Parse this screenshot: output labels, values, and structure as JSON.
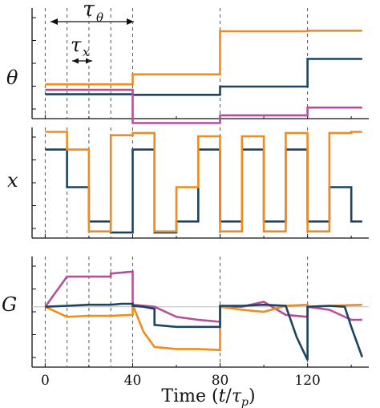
{
  "colors": {
    "orange": "#f08c1e",
    "navy": "#1c4460",
    "magenta": "#b3509c",
    "axis": "#111111",
    "dashed": "#555555",
    "zero_line": "#bbbbbb"
  },
  "annotations": {
    "tau_theta": "τ",
    "tau_theta_sub": "θ",
    "tau_x": "τ",
    "tau_x_sub": "x"
  },
  "chart_data": [
    {
      "type": "line",
      "panel": "theta",
      "ylabel": "θ",
      "xlabel": "",
      "xlim": [
        -6,
        148
      ],
      "ylim": [
        0,
        10
      ],
      "grid": false,
      "vlines": [
        0,
        10,
        20,
        30,
        40,
        80,
        120
      ],
      "series": [
        {
          "color": "orange",
          "step": true,
          "x": [
            0,
            40,
            40,
            80,
            80,
            120,
            120,
            145
          ],
          "y": [
            3.1,
            3.1,
            4.0,
            4.0,
            7.9,
            7.9,
            7.95,
            7.95
          ]
        },
        {
          "color": "navy",
          "step": true,
          "x": [
            0,
            40,
            40,
            80,
            80,
            120,
            120,
            145
          ],
          "y": [
            2.2,
            2.2,
            2.15,
            2.15,
            2.9,
            2.9,
            5.4,
            5.4
          ]
        },
        {
          "color": "magenta",
          "step": true,
          "x": [
            0,
            40,
            40,
            80,
            80,
            120,
            120,
            145
          ],
          "y": [
            2.6,
            2.6,
            -0.4,
            -0.4,
            0.3,
            0.3,
            1.0,
            1.0
          ]
        }
      ]
    },
    {
      "type": "line",
      "panel": "x",
      "ylabel": "x",
      "xlabel": "",
      "xlim": [
        -6,
        148
      ],
      "ylim": [
        0,
        10
      ],
      "grid": false,
      "vlines": [
        0,
        10,
        20,
        30,
        40,
        80,
        120
      ],
      "series": [
        {
          "color": "navy",
          "step": true,
          "x": [
            0,
            10,
            10,
            20,
            20,
            30,
            30,
            40,
            40,
            50,
            50,
            60,
            60,
            70,
            70,
            80,
            80,
            90,
            90,
            100,
            100,
            110,
            110,
            120,
            120,
            130,
            130,
            140,
            140,
            145
          ],
          "y": [
            8.0,
            8.0,
            4.6,
            4.6,
            1.5,
            1.5,
            0.5,
            0.5,
            8.0,
            8.0,
            0.5,
            0.5,
            1.5,
            1.5,
            8.0,
            8.0,
            1.5,
            1.5,
            8.0,
            8.0,
            1.5,
            1.5,
            8.0,
            8.0,
            1.5,
            1.5,
            4.6,
            4.6,
            1.5,
            1.5
          ]
        },
        {
          "color": "orange",
          "step": true,
          "x": [
            0,
            10,
            10,
            20,
            20,
            30,
            30,
            40,
            40,
            50,
            50,
            60,
            60,
            70,
            70,
            80,
            80,
            90,
            90,
            100,
            100,
            110,
            110,
            120,
            120,
            130,
            130,
            140,
            140,
            145
          ],
          "y": [
            9.6,
            9.6,
            8.0,
            8.0,
            0.6,
            0.6,
            9.3,
            9.3,
            9.5,
            9.5,
            0.6,
            0.6,
            4.6,
            4.6,
            9.2,
            9.2,
            0.6,
            0.6,
            9.2,
            9.2,
            0.6,
            0.6,
            9.5,
            9.5,
            0.6,
            0.6,
            9.5,
            9.5,
            9.6,
            9.6
          ]
        }
      ]
    },
    {
      "type": "line",
      "panel": "G",
      "ylabel": "G",
      "xlabel": "Time (t/τp)",
      "xlabel_prefix": "Time (",
      "xlabel_t": "t",
      "xlabel_slash": "/",
      "xlabel_tau": "τ",
      "xlabel_sub": "p",
      "xlabel_suffix": ")",
      "xlim": [
        -6,
        148
      ],
      "ylim": [
        -6,
        5
      ],
      "grid": false,
      "vlines": [
        0,
        10,
        20,
        30,
        40,
        80,
        120
      ],
      "xticks": [
        0,
        40,
        80,
        120
      ],
      "xtick_labels": [
        "0",
        "40",
        "80",
        "120"
      ],
      "series": [
        {
          "color": "magenta",
          "x": [
            0,
            10,
            20,
            30,
            30,
            40,
            40,
            50,
            60,
            70,
            80,
            80,
            90,
            100,
            110,
            120,
            120,
            130,
            140,
            145
          ],
          "y": [
            0,
            3.0,
            3.0,
            3.0,
            3.3,
            3.5,
            0.2,
            0.0,
            -1.0,
            -1.3,
            -1.5,
            0.0,
            0.0,
            0.5,
            -0.8,
            -1.0,
            0.0,
            -0.3,
            -1.3,
            -1.3
          ]
        },
        {
          "color": "orange",
          "x": [
            0,
            10,
            20,
            30,
            40,
            40,
            45,
            50,
            60,
            70,
            80,
            80,
            90,
            100,
            110,
            120,
            120,
            130,
            145
          ],
          "y": [
            0,
            -1.0,
            -0.9,
            -0.9,
            -0.8,
            0.2,
            -2.5,
            -4.0,
            -4.2,
            -4.2,
            -4.3,
            0.0,
            -0.3,
            -0.5,
            0.1,
            0.2,
            0.0,
            0.1,
            0.2
          ]
        },
        {
          "color": "navy",
          "x": [
            0,
            10,
            20,
            30,
            35,
            40,
            40,
            45,
            50,
            50,
            55,
            60,
            70,
            80,
            80,
            90,
            100,
            110,
            115,
            120,
            120,
            130,
            137,
            140,
            145
          ],
          "y": [
            0,
            0.1,
            0.2,
            0.2,
            0.3,
            0.3,
            0.1,
            0.0,
            -0.2,
            -1.8,
            -1.9,
            -2.0,
            -2.0,
            -2.0,
            0.1,
            0.1,
            0.2,
            0.1,
            -3.0,
            -5.3,
            0.0,
            0.1,
            0.0,
            -2.0,
            -5.0
          ]
        }
      ]
    }
  ]
}
